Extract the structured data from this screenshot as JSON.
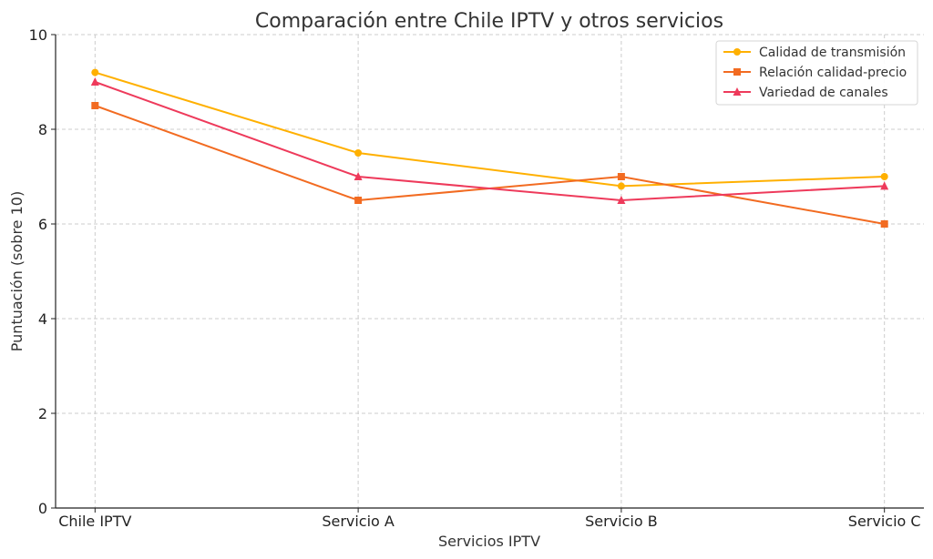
{
  "chart_data": {
    "type": "line",
    "title": "Comparación entre Chile IPTV y otros servicios",
    "xlabel": "Servicios IPTV",
    "ylabel": "Puntuación (sobre 10)",
    "categories": [
      "Chile IPTV",
      "Servicio A",
      "Servicio B",
      "Servicio C"
    ],
    "ylim": [
      0,
      10
    ],
    "yticks": [
      0,
      2,
      4,
      6,
      8,
      10
    ],
    "grid": true,
    "legend_position": "top-right",
    "series": [
      {
        "name": "Calidad de transmisión",
        "values": [
          9.2,
          7.5,
          6.8,
          7.0
        ],
        "color": "#FFB000",
        "marker": "circle"
      },
      {
        "name": "Relación calidad-precio",
        "values": [
          8.5,
          6.5,
          7.0,
          6.0
        ],
        "color": "#F26B21",
        "marker": "square"
      },
      {
        "name": "Variedad de canales",
        "values": [
          9.0,
          7.0,
          6.5,
          6.8
        ],
        "color": "#EE3A5B",
        "marker": "triangle"
      }
    ]
  }
}
